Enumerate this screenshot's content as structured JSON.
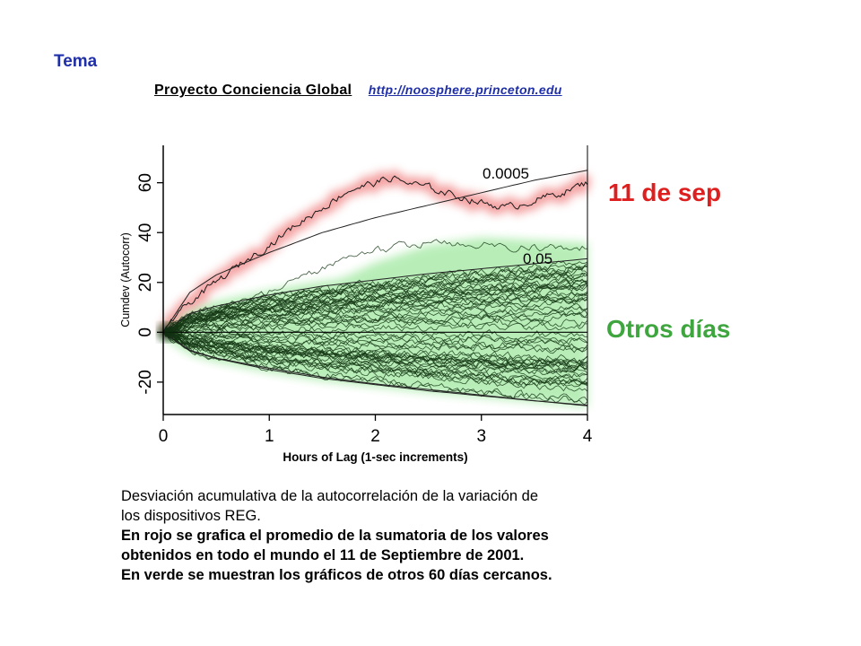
{
  "slide": {
    "tema": "Tema",
    "project_title": "Proyecto Conciencia Global",
    "project_link": "http://noosphere.princeton.edu",
    "caption_line1": "Desviación acumulativa de la autocorrelación de la variación de",
    "caption_line2": "los dispositivos REG.",
    "caption_bold1": "En rojo se grafica el promedio de la sumatoria de los valores",
    "caption_bold2": "obtenidos en todo el mundo el 11 de Septiembre de 2001.",
    "caption_bold3": "En verde se muestran los gráficos de otros 60 días cercanos."
  },
  "colors": {
    "red_glow": "#f08080",
    "green_glow": "#7fe07f",
    "label_red": "#dd1f1f",
    "label_green": "#3fa53f",
    "link": "#1f2fa8"
  },
  "chart_data": {
    "type": "line",
    "xlabel": "Hours of Lag (1-sec increments)",
    "ylabel": "Cumdev (Autocorr)",
    "xlim": [
      0,
      4
    ],
    "ylim": [
      -33,
      75
    ],
    "xticks": [
      0,
      1,
      2,
      3,
      4
    ],
    "yticks": [
      -20,
      0,
      20,
      40,
      60
    ],
    "grid": false,
    "envelope_labels": [
      "0.0005",
      "0.05"
    ],
    "envelopes": [
      {
        "name": "0.0005",
        "x": [
          0,
          0.25,
          0.5,
          1,
          1.5,
          2,
          2.5,
          3,
          3.5,
          4
        ],
        "upper": [
          0,
          16,
          23,
          32,
          40,
          46,
          51,
          56,
          61,
          65
        ]
      },
      {
        "name": "0.05",
        "x": [
          0,
          0.25,
          0.5,
          1,
          1.5,
          2,
          2.5,
          3,
          3.5,
          4
        ],
        "upper": [
          0,
          7.5,
          10.5,
          15,
          18.5,
          21,
          23.5,
          25.5,
          27.5,
          29.5
        ],
        "lower": [
          0,
          -7.5,
          -10.5,
          -15,
          -18.5,
          -21,
          -23.5,
          -25.5,
          -27.5,
          -29.5
        ]
      }
    ],
    "series": [
      {
        "name": "11 de sep",
        "x": [
          0,
          0.1,
          0.25,
          0.5,
          0.75,
          1,
          1.25,
          1.5,
          1.75,
          2,
          2.15,
          2.3,
          2.5,
          2.75,
          3,
          3.25,
          3.5,
          3.75,
          4
        ],
        "y": [
          0,
          5,
          12,
          20,
          28,
          35,
          43,
          50,
          57,
          60,
          62,
          60,
          58,
          55,
          52,
          50,
          53,
          56,
          60
        ]
      },
      {
        "name": "Otros días",
        "x": [
          0,
          0.5,
          1,
          1.5,
          2,
          2.5,
          3,
          3.5,
          4
        ],
        "y": [
          0,
          4,
          8,
          16,
          26,
          33,
          36,
          35,
          34
        ]
      }
    ]
  }
}
